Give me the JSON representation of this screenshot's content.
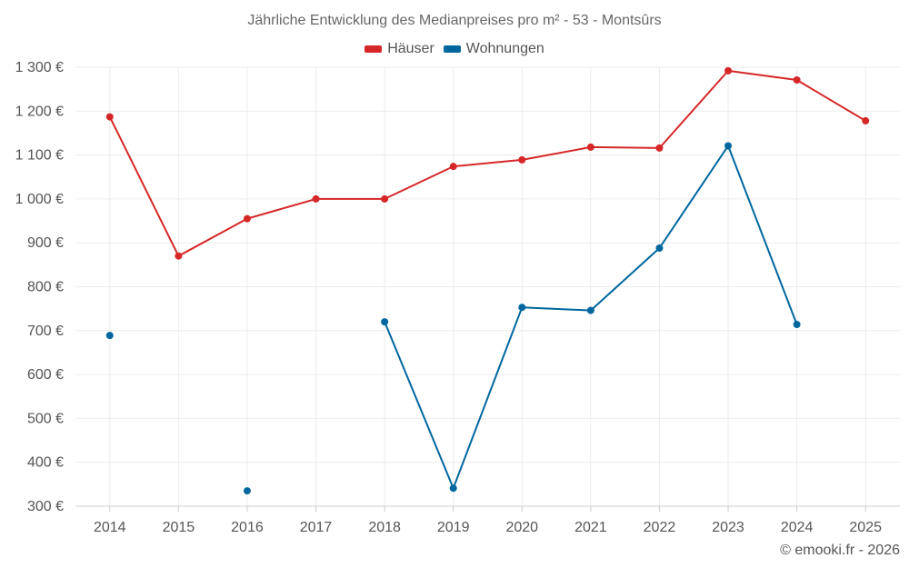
{
  "credit": "© emooki.fr - 2026",
  "chart_data": {
    "type": "line",
    "title": "Jährliche Entwicklung des Medianpreises pro m² - 53 - Montsûrs",
    "xlabel": "",
    "ylabel": "",
    "categories": [
      "2014",
      "2015",
      "2016",
      "2017",
      "2018",
      "2019",
      "2020",
      "2021",
      "2022",
      "2023",
      "2024",
      "2025"
    ],
    "ylim": [
      300,
      1300
    ],
    "yticks": [
      300,
      400,
      500,
      600,
      700,
      800,
      900,
      1000,
      1100,
      1200,
      1300
    ],
    "ytick_labels": [
      "300 €",
      "400 €",
      "500 €",
      "600 €",
      "700 €",
      "800 €",
      "900 €",
      "1 000 €",
      "1 100 €",
      "1 200 €",
      "1 300 €"
    ],
    "grid": true,
    "legend_position": "top-center",
    "series": [
      {
        "name": "Häuser",
        "color": "#d62728",
        "values": [
          1187,
          870,
          955,
          1000,
          1000,
          1074,
          1089,
          1118,
          1116,
          1292,
          1271,
          1178
        ]
      },
      {
        "name": "Wohnungen",
        "color": "#00679e",
        "values": [
          689,
          null,
          335,
          null,
          720,
          341,
          753,
          746,
          888,
          1121,
          714,
          null
        ]
      }
    ]
  }
}
